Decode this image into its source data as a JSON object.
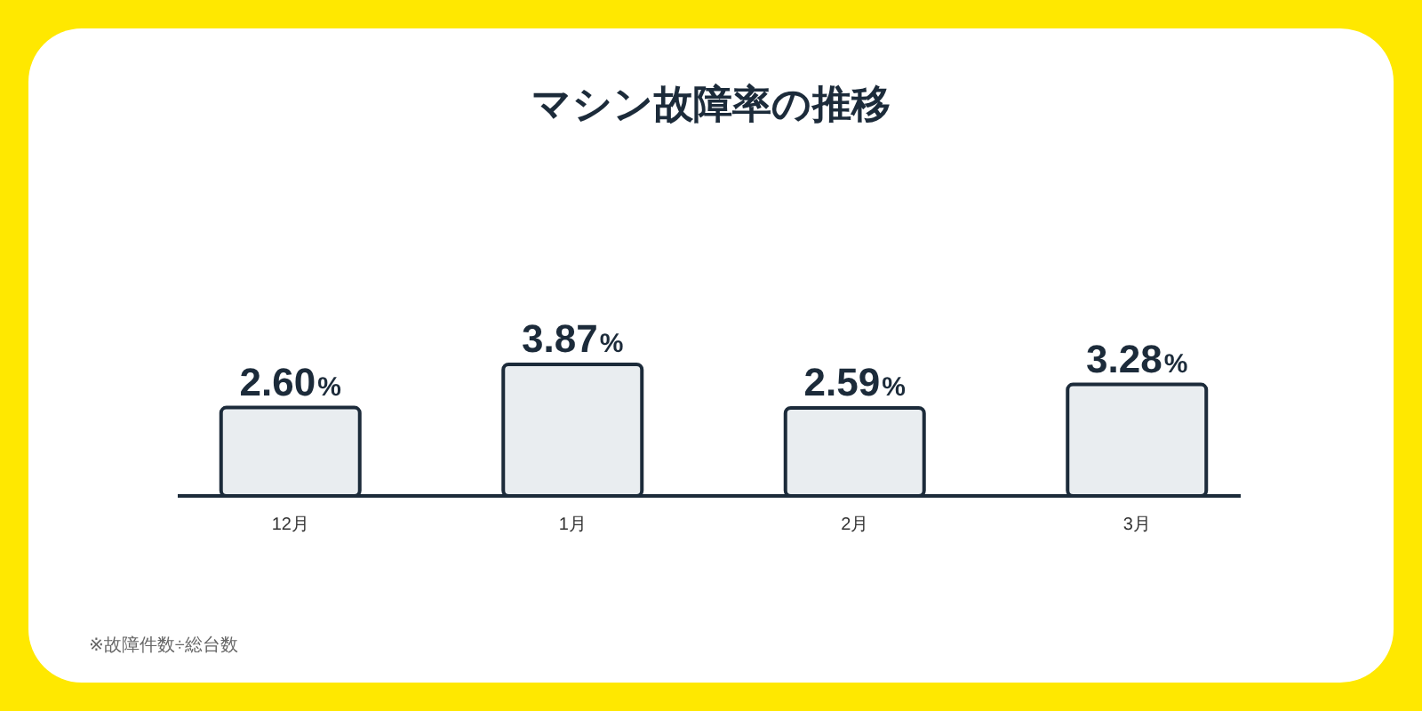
{
  "chart_data": {
    "type": "bar",
    "title": "マシン故障率の推移",
    "categories": [
      "12月",
      "1月",
      "2月",
      "3月"
    ],
    "values": [
      2.6,
      3.87,
      2.59,
      3.28
    ],
    "value_labels": [
      "2.60%",
      "3.87%",
      "2.59%",
      "3.28%"
    ],
    "color": "#e9edf0",
    "annotations": [
      "※故障件数÷総台数"
    ]
  }
}
